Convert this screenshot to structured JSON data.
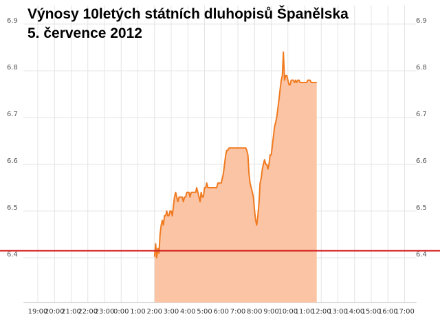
{
  "chart_data": {
    "type": "area",
    "title": "Výnosy 10letých státních dluhopisů Španělska",
    "subtitle": "5. července 2012",
    "xlabel": "",
    "ylabel": "",
    "ylim": [
      6.35,
      6.92
    ],
    "yticks": [
      "6.4",
      "6.5",
      "6.6",
      "6.7",
      "6.8",
      "6.9"
    ],
    "xticks": [
      "19:00",
      "20:00",
      "21:00",
      "22:00",
      "23:00",
      "0:00",
      "1:00",
      "2:00",
      "3:00",
      "4:00",
      "5:00",
      "6:00",
      "7:00",
      "8:00",
      "9:00",
      "10:00",
      "11:00",
      "12:00",
      "13:00",
      "14:00",
      "15:00",
      "16:00",
      "17:00"
    ],
    "grid": true,
    "reference_line": {
      "value": 6.415,
      "color": "#d42020"
    },
    "colors": {
      "line": "#f07a20",
      "fill": "#fbc4a4",
      "grid": "#e4e4e4"
    },
    "series": [
      {
        "x": [
          2.0,
          2.07,
          2.13,
          2.2,
          2.27,
          2.33,
          2.4,
          2.47,
          2.53,
          2.6,
          2.67,
          2.73,
          2.8,
          2.87,
          2.93,
          3.0,
          3.07,
          3.13,
          3.2,
          3.27,
          3.33,
          3.4,
          3.47,
          3.53,
          3.6,
          3.67,
          3.73,
          3.8,
          3.87,
          3.93,
          4.0,
          4.07,
          4.13,
          4.2,
          4.27,
          4.33,
          4.4,
          4.47,
          4.53,
          4.6,
          4.67,
          4.73,
          4.8,
          4.87,
          4.93,
          5.0,
          5.07,
          5.13,
          5.2,
          5.27,
          5.33,
          5.4,
          5.47,
          5.53,
          5.6,
          5.67,
          5.73,
          5.8,
          5.87,
          5.93,
          6.0,
          6.07,
          6.13,
          6.2,
          6.27,
          6.33,
          6.4,
          6.47,
          6.53,
          6.6,
          6.67,
          6.73,
          6.8,
          6.87,
          6.93,
          7.0,
          7.07,
          7.13,
          7.2,
          7.27,
          7.33,
          7.4,
          7.47,
          7.53,
          7.6,
          7.67,
          7.73,
          7.8,
          7.87,
          7.93,
          8.0,
          8.07,
          8.13,
          8.2,
          8.27,
          8.33,
          8.4,
          8.47,
          8.53,
          8.6,
          8.67,
          8.73,
          8.8,
          8.87,
          8.93,
          9.0,
          9.07,
          9.13,
          9.2,
          9.27,
          9.33,
          9.4,
          9.47,
          9.53,
          9.6,
          9.67,
          9.73,
          9.8,
          9.87,
          9.93,
          10.0,
          10.07,
          10.13,
          10.2,
          10.27,
          10.33,
          10.4,
          10.47,
          10.53,
          10.6,
          10.67,
          10.73,
          10.8,
          10.87,
          10.93,
          11.0,
          11.07,
          11.13,
          11.2,
          11.27,
          11.33,
          11.4,
          11.47,
          11.53,
          11.6,
          11.67,
          11.73
        ],
        "y": [
          6.402,
          6.43,
          6.4,
          6.42,
          6.41,
          6.45,
          6.47,
          6.48,
          6.47,
          6.49,
          6.49,
          6.5,
          6.49,
          6.49,
          6.5,
          6.5,
          6.49,
          6.51,
          6.53,
          6.54,
          6.53,
          6.52,
          6.53,
          6.53,
          6.53,
          6.53,
          6.52,
          6.53,
          6.53,
          6.54,
          6.54,
          6.54,
          6.53,
          6.54,
          6.54,
          6.54,
          6.54,
          6.54,
          6.55,
          6.54,
          6.53,
          6.52,
          6.54,
          6.53,
          6.53,
          6.55,
          6.55,
          6.56,
          6.55,
          6.55,
          6.55,
          6.55,
          6.55,
          6.55,
          6.55,
          6.55,
          6.55,
          6.56,
          6.56,
          6.56,
          6.56,
          6.57,
          6.58,
          6.6,
          6.62,
          6.63,
          6.63,
          6.635,
          6.635,
          6.635,
          6.635,
          6.635,
          6.635,
          6.635,
          6.635,
          6.635,
          6.635,
          6.635,
          6.635,
          6.635,
          6.635,
          6.635,
          6.635,
          6.63,
          6.62,
          6.58,
          6.56,
          6.55,
          6.54,
          6.53,
          6.5,
          6.48,
          6.47,
          6.49,
          6.52,
          6.56,
          6.57,
          6.59,
          6.6,
          6.61,
          6.6,
          6.6,
          6.59,
          6.6,
          6.62,
          6.62,
          6.64,
          6.66,
          6.68,
          6.69,
          6.7,
          6.72,
          6.74,
          6.76,
          6.78,
          6.79,
          6.84,
          6.78,
          6.79,
          6.79,
          6.78,
          6.77,
          6.77,
          6.78,
          6.78,
          6.78,
          6.775,
          6.78,
          6.775,
          6.78,
          6.78,
          6.775,
          6.775,
          6.775,
          6.775,
          6.775,
          6.775,
          6.775,
          6.78,
          6.78,
          6.78,
          6.775,
          6.775,
          6.775,
          6.775,
          6.775,
          6.775
        ]
      }
    ]
  }
}
